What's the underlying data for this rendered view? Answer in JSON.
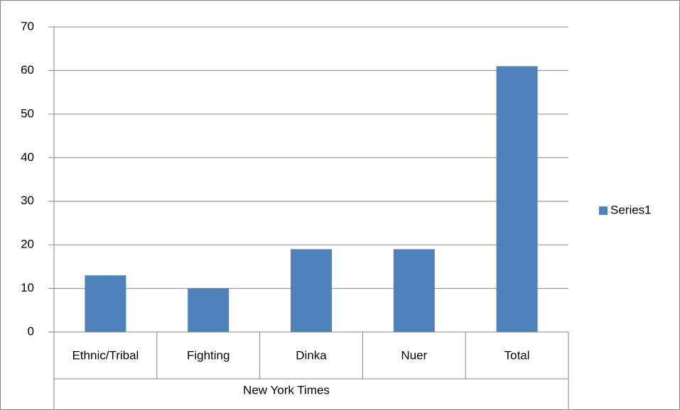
{
  "chart_data": {
    "type": "bar",
    "categories": [
      "Ethnic/Tribal",
      "Fighting",
      "Dinka",
      "Nuer",
      "Total"
    ],
    "category_group": "New York Times",
    "series": [
      {
        "name": "Series1",
        "color": "#4f81bd",
        "values": [
          13,
          10,
          19,
          19,
          61
        ]
      }
    ],
    "ylim": [
      0,
      70
    ],
    "yticks": [
      0,
      10,
      20,
      30,
      40,
      50,
      60,
      70
    ],
    "grid": true,
    "legend": "right"
  }
}
